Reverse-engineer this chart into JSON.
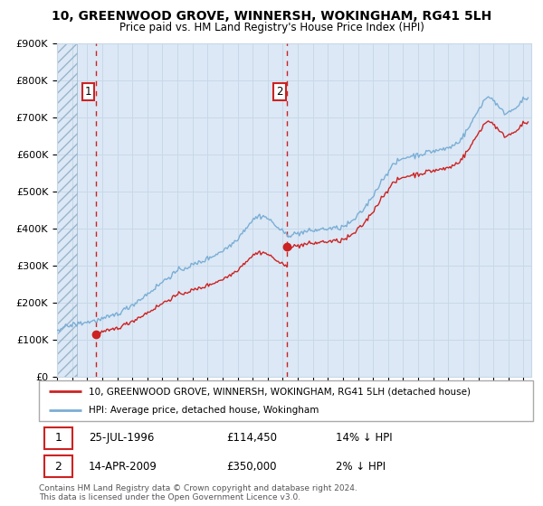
{
  "title": "10, GREENWOOD GROVE, WINNERSH, WOKINGHAM, RG41 5LH",
  "subtitle": "Price paid vs. HM Land Registry's House Price Index (HPI)",
  "ylim": [
    0,
    900000
  ],
  "yticks": [
    0,
    100000,
    200000,
    300000,
    400000,
    500000,
    600000,
    700000,
    800000,
    900000
  ],
  "ytick_labels": [
    "£0",
    "£100K",
    "£200K",
    "£300K",
    "£400K",
    "£500K",
    "£600K",
    "£700K",
    "£800K",
    "£900K"
  ],
  "xlim_start": 1994.0,
  "xlim_end": 2025.5,
  "sale1_year": 1996.56,
  "sale1_price": 114450,
  "sale2_year": 2009.29,
  "sale2_price": 350000,
  "hpi_line_color": "#7aaed6",
  "sale_line_color": "#cc2222",
  "annotation1_label": "1",
  "annotation2_label": "2",
  "legend_sale": "10, GREENWOOD GROVE, WINNERSH, WOKINGHAM, RG41 5LH (detached house)",
  "legend_hpi": "HPI: Average price, detached house, Wokingham",
  "table_row1": [
    "1",
    "25-JUL-1996",
    "£114,450",
    "14% ↓ HPI"
  ],
  "table_row2": [
    "2",
    "14-APR-2009",
    "£350,000",
    "2% ↓ HPI"
  ],
  "footnote": "Contains HM Land Registry data © Crown copyright and database right 2024.\nThis data is licensed under the Open Government Licence v3.0.",
  "bg_blue_color": "#dce8f5",
  "hatch_end_year": 1995.3,
  "grid_color": "#c8d8e8",
  "dashed_line1_year": 1996.56,
  "dashed_line2_year": 2009.29
}
